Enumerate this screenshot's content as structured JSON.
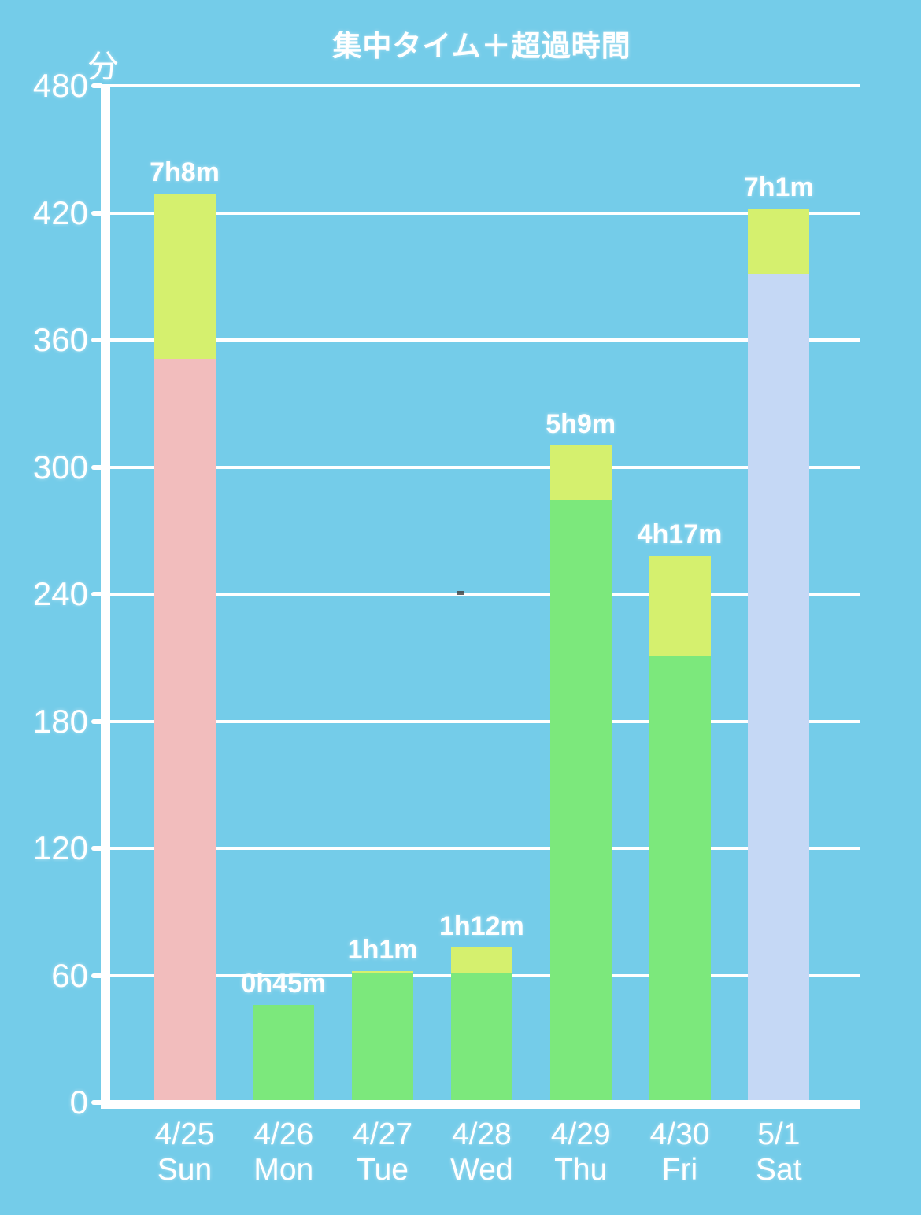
{
  "chart": {
    "colors": {
      "background": "#74CCE9",
      "axis": "#FFFFFF",
      "grid": "#FFFFFF",
      "text": "#FFFFFF",
      "bar_green_weekday": "#7CE87C",
      "bar_pink_sunday": "#F2BDBD",
      "bar_lavender_saturday": "#C5D8F5",
      "bar_overtime_yellow": "#D5F06E"
    }
  },
  "chart_data": {
    "type": "bar",
    "stacked": true,
    "title": "集中タイム＋超過時間",
    "ylabel": "分",
    "xlabel": "",
    "ylim": [
      0,
      480
    ],
    "ytick_interval": 60,
    "yticks": [
      0,
      60,
      120,
      180,
      240,
      300,
      360,
      420,
      480
    ],
    "grid": true,
    "legend": false,
    "categories": [
      {
        "date": "4/25",
        "weekday": "Sun"
      },
      {
        "date": "4/26",
        "weekday": "Mon"
      },
      {
        "date": "4/27",
        "weekday": "Tue"
      },
      {
        "date": "4/28",
        "weekday": "Wed"
      },
      {
        "date": "4/29",
        "weekday": "Thu"
      },
      {
        "date": "4/30",
        "weekday": "Fri"
      },
      {
        "date": "5/1",
        "weekday": "Sat"
      }
    ],
    "series": [
      {
        "name": "集中タイム",
        "values": [
          350,
          45,
          60,
          60,
          283,
          210,
          390
        ],
        "colors": [
          "#F2BDBD",
          "#7CE87C",
          "#7CE87C",
          "#7CE87C",
          "#7CE87C",
          "#7CE87C",
          "#C5D8F5"
        ]
      },
      {
        "name": "超過時間",
        "values": [
          78,
          0,
          1,
          12,
          26,
          47,
          31
        ],
        "colors": [
          "#D5F06E",
          "#D5F06E",
          "#D5F06E",
          "#D5F06E",
          "#D5F06E",
          "#D5F06E",
          "#D5F06E"
        ]
      }
    ],
    "bar_value_labels": [
      "7h8m",
      "0h45m",
      "1h1m",
      "1h12m",
      "5h9m",
      "4h17m",
      "7h1m"
    ],
    "bar_totals_minutes": [
      428,
      45,
      61,
      72,
      309,
      257,
      421
    ]
  }
}
